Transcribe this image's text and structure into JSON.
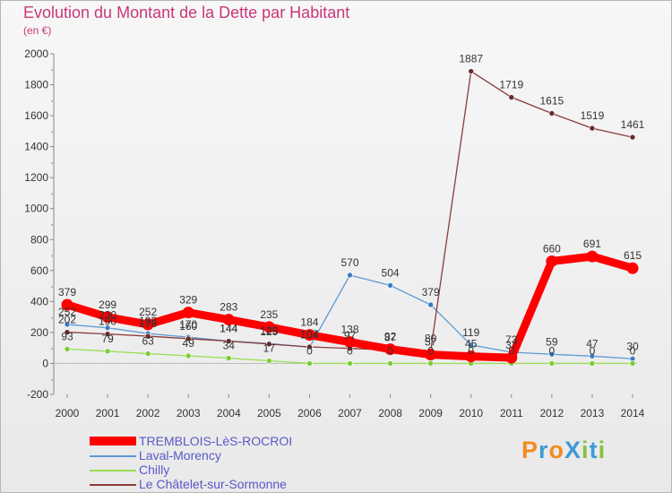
{
  "title": "Evolution du Montant de la Dette par Habitant",
  "subtitle": "(en €)",
  "logo": "ProXiti",
  "colors": {
    "title": "#c8377a",
    "axis_text": "#333333",
    "legend_text": "#5a58c8"
  },
  "chart_data": {
    "type": "line",
    "title": "Evolution du Montant de la Dette par Habitant",
    "ylabel": "(en €)",
    "xlabel": "",
    "ylim": [
      -200,
      2000
    ],
    "yticks": [
      -200,
      0,
      200,
      400,
      600,
      800,
      1000,
      1200,
      1400,
      1600,
      1800,
      2000
    ],
    "categories": [
      "2000",
      "2001",
      "2002",
      "2003",
      "2004",
      "2005",
      "2006",
      "2007",
      "2008",
      "2009",
      "2010",
      "2011",
      "2012",
      "2013",
      "2014"
    ],
    "series": [
      {
        "name": "TREMBLOIS-LèS-ROCROI",
        "color": "#ff0000",
        "marker": "#ff0000",
        "thick": true,
        "values": [
          379,
          299,
          252,
          329,
          283,
          235,
          184,
          138,
          92,
          57,
          45,
          37,
          660,
          691,
          615
        ]
      },
      {
        "name": "Laval-Morency",
        "color": "#5b9ad5",
        "marker": "#3a7cc2",
        "values": [
          252,
          230,
          193,
          170,
          144,
          129,
          104,
          570,
          504,
          379,
          119,
          73,
          59,
          47,
          30
        ]
      },
      {
        "name": "Chilly",
        "color": "#99dd55",
        "marker": "#7acc33",
        "values": [
          93,
          79,
          63,
          49,
          34,
          17,
          0,
          0,
          0,
          0,
          0,
          0,
          0,
          0,
          0
        ]
      },
      {
        "name": "Le Châtelet-sur-Sormonne",
        "color": "#8a3b3b",
        "marker": "#6a2a2a",
        "values": [
          202,
          190,
          176,
          160,
          144,
          125,
          107,
          97,
          87,
          80,
          1887,
          1719,
          1615,
          1519,
          1461
        ]
      }
    ],
    "point_labels": [
      [
        "379",
        "299",
        "252",
        "329",
        "283",
        "235",
        "184",
        "138",
        "92",
        "57",
        "45",
        "37",
        "660",
        "691",
        "615"
      ],
      [
        "252",
        "230",
        "193",
        "170",
        "144",
        "129",
        "104",
        "570",
        "504",
        "379",
        "119",
        "73",
        "59",
        "47",
        "30"
      ],
      [
        "93",
        "79",
        "63",
        "49",
        "34",
        "17",
        "0",
        "0",
        "0",
        "0",
        "0",
        "0",
        "0",
        "0",
        "0"
      ],
      [
        "202",
        "190",
        "176",
        "160",
        "144",
        "125",
        "107",
        "97",
        "87",
        "80",
        "1887",
        "1719",
        "1615",
        "1519",
        "1461"
      ]
    ],
    "legend": [
      "TREMBLOIS-LèS-ROCROI",
      "Laval-Morency",
      "Chilly",
      "Le Châtelet-sur-Sormonne"
    ],
    "legend_position": "bottom-left",
    "grid": false
  }
}
